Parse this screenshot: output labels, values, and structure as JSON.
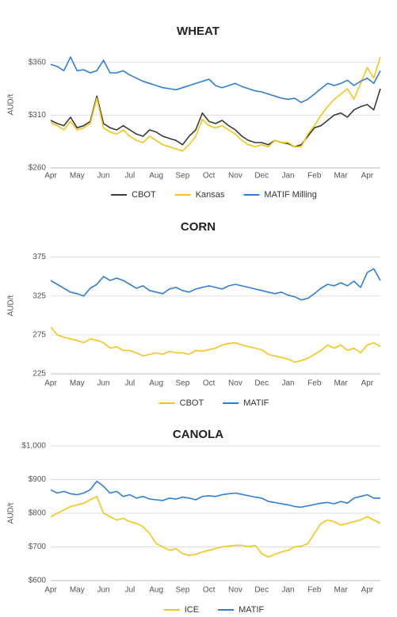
{
  "chart_data": [
    {
      "type": "line",
      "title": "WHEAT",
      "ylabel": "AUD/t",
      "categories": [
        "Apr",
        null,
        null,
        null,
        "May",
        null,
        null,
        null,
        "Jun",
        null,
        null,
        null,
        "Jul",
        null,
        null,
        null,
        "Aug",
        null,
        null,
        null,
        "Sep",
        null,
        null,
        null,
        "Oct",
        null,
        null,
        null,
        "Nov",
        null,
        null,
        null,
        "Dec",
        null,
        null,
        null,
        "Jan",
        null,
        null,
        null,
        "Feb",
        null,
        null,
        null,
        "Mar",
        null,
        null,
        null,
        "Apr",
        null,
        null
      ],
      "ylim": [
        260,
        380
      ],
      "yticks": [
        {
          "value": 260,
          "label": "$260"
        },
        {
          "value": 310,
          "label": "$310"
        },
        {
          "value": 360,
          "label": "$360"
        }
      ],
      "grid": true,
      "series": [
        {
          "name": "CBOT",
          "color": "#3a3a3a",
          "values": [
            305,
            302,
            300,
            308,
            298,
            300,
            304,
            328,
            302,
            298,
            296,
            300,
            296,
            292,
            290,
            296,
            294,
            290,
            288,
            286,
            282,
            290,
            296,
            312,
            304,
            302,
            305,
            300,
            296,
            290,
            286,
            284,
            284,
            282,
            286,
            284,
            283,
            280,
            282,
            290,
            298,
            300,
            305,
            310,
            312,
            308,
            315,
            318,
            320,
            315,
            335
          ]
        },
        {
          "name": "Kansas",
          "color": "#f5c518",
          "values": [
            303,
            300,
            296,
            304,
            296,
            298,
            302,
            326,
            298,
            294,
            292,
            296,
            290,
            286,
            284,
            290,
            286,
            282,
            280,
            278,
            276,
            282,
            290,
            306,
            300,
            298,
            300,
            296,
            292,
            286,
            282,
            280,
            282,
            280,
            286,
            284,
            284,
            280,
            280,
            292,
            300,
            310,
            318,
            325,
            330,
            335,
            325,
            340,
            355,
            345,
            365
          ]
        },
        {
          "name": "MATIF Milling",
          "color": "#2f7ed8",
          "values": [
            358,
            356,
            352,
            365,
            352,
            353,
            350,
            352,
            362,
            350,
            350,
            352,
            348,
            345,
            342,
            340,
            338,
            336,
            335,
            334,
            336,
            338,
            340,
            342,
            344,
            338,
            336,
            338,
            340,
            337,
            335,
            333,
            332,
            330,
            328,
            326,
            325,
            326,
            322,
            325,
            330,
            335,
            340,
            338,
            340,
            343,
            338,
            342,
            345,
            340,
            352
          ]
        }
      ]
    },
    {
      "type": "line",
      "title": "CORN",
      "ylabel": "AUD/t",
      "categories": [
        "Apr",
        null,
        null,
        null,
        "May",
        null,
        null,
        null,
        "Jun",
        null,
        null,
        null,
        "Jul",
        null,
        null,
        null,
        "Aug",
        null,
        null,
        null,
        "Sep",
        null,
        null,
        null,
        "Oct",
        null,
        null,
        null,
        "Nov",
        null,
        null,
        null,
        "Dec",
        null,
        null,
        null,
        "Jan",
        null,
        null,
        null,
        "Feb",
        null,
        null,
        null,
        "Mar",
        null,
        null,
        null,
        "Apr",
        null,
        null
      ],
      "ylim": [
        225,
        400
      ],
      "yticks": [
        225,
        275,
        325,
        375
      ],
      "grid": true,
      "series": [
        {
          "name": "CBOT",
          "color": "#f5c518",
          "values": [
            285,
            275,
            272,
            270,
            268,
            265,
            270,
            268,
            265,
            258,
            260,
            255,
            255,
            252,
            248,
            250,
            252,
            250,
            254,
            252,
            252,
            250,
            255,
            254,
            256,
            258,
            262,
            264,
            265,
            262,
            260,
            258,
            256,
            250,
            248,
            246,
            244,
            240,
            242,
            245,
            250,
            255,
            262,
            258,
            262,
            255,
            258,
            252,
            262,
            265,
            260
          ]
        },
        {
          "name": "MATIF",
          "color": "#2f7ed8",
          "values": [
            345,
            340,
            335,
            330,
            328,
            325,
            335,
            340,
            350,
            345,
            348,
            345,
            340,
            335,
            338,
            332,
            330,
            328,
            334,
            336,
            332,
            330,
            334,
            336,
            338,
            336,
            334,
            338,
            340,
            338,
            336,
            334,
            332,
            330,
            328,
            330,
            326,
            324,
            320,
            322,
            328,
            335,
            340,
            338,
            342,
            338,
            344,
            336,
            355,
            360,
            345
          ]
        }
      ]
    },
    {
      "type": "line",
      "title": "CANOLA",
      "ylabel": "AUD/t",
      "categories": [
        "Apr",
        null,
        null,
        null,
        "May",
        null,
        null,
        null,
        "Jun",
        null,
        null,
        null,
        "Jul",
        null,
        null,
        null,
        "Aug",
        null,
        null,
        null,
        "Sep",
        null,
        null,
        null,
        "Oct",
        null,
        null,
        null,
        "Nov",
        null,
        null,
        null,
        "Dec",
        null,
        null,
        null,
        "Jan",
        null,
        null,
        null,
        "Feb",
        null,
        null,
        null,
        "Mar",
        null,
        null,
        null,
        "Apr",
        null,
        null
      ],
      "ylim": [
        600,
        1000
      ],
      "yticks": [
        {
          "value": 600,
          "label": "$600"
        },
        {
          "value": 700,
          "label": "$700"
        },
        {
          "value": 800,
          "label": "$800"
        },
        {
          "value": 900,
          "label": "$900"
        },
        {
          "value": 1000,
          "label": "$1,000"
        }
      ],
      "grid": true,
      "series": [
        {
          "name": "ICE",
          "color": "#f5c518",
          "values": [
            790,
            800,
            810,
            820,
            825,
            830,
            840,
            850,
            800,
            790,
            780,
            785,
            775,
            770,
            760,
            740,
            710,
            700,
            690,
            695,
            680,
            675,
            678,
            685,
            690,
            695,
            700,
            702,
            705,
            705,
            700,
            705,
            680,
            670,
            678,
            685,
            690,
            700,
            702,
            710,
            740,
            770,
            780,
            775,
            765,
            770,
            775,
            780,
            790,
            780,
            770
          ]
        },
        {
          "name": "MATIF",
          "color": "#2f7ed8",
          "values": [
            870,
            860,
            865,
            858,
            855,
            860,
            870,
            895,
            880,
            860,
            865,
            850,
            855,
            845,
            850,
            842,
            840,
            838,
            845,
            842,
            848,
            845,
            840,
            850,
            852,
            850,
            855,
            858,
            860,
            856,
            852,
            848,
            845,
            835,
            832,
            828,
            825,
            820,
            818,
            822,
            826,
            830,
            832,
            828,
            835,
            830,
            845,
            850,
            855,
            845,
            845
          ]
        }
      ]
    }
  ]
}
